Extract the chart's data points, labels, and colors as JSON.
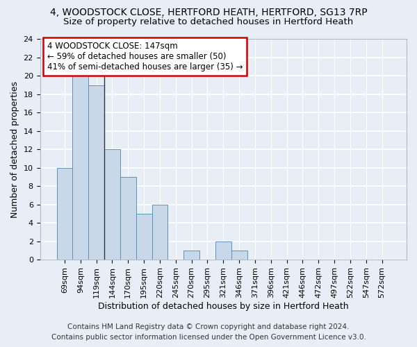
{
  "title_line1": "4, WOODSTOCK CLOSE, HERTFORD HEATH, HERTFORD, SG13 7RP",
  "title_line2": "Size of property relative to detached houses in Hertford Heath",
  "xlabel": "Distribution of detached houses by size in Hertford Heath",
  "ylabel": "Number of detached properties",
  "categories": [
    "69sqm",
    "94sqm",
    "119sqm",
    "144sqm",
    "170sqm",
    "195sqm",
    "220sqm",
    "245sqm",
    "270sqm",
    "295sqm",
    "321sqm",
    "346sqm",
    "371sqm",
    "396sqm",
    "421sqm",
    "446sqm",
    "472sqm",
    "497sqm",
    "522sqm",
    "547sqm",
    "572sqm"
  ],
  "values": [
    10,
    20,
    19,
    12,
    9,
    5,
    6,
    0,
    1,
    0,
    2,
    1,
    0,
    0,
    0,
    0,
    0,
    0,
    0,
    0,
    0
  ],
  "bar_color": "#c8d8e8",
  "bar_edge_color": "#6090b8",
  "annotation_line1": "4 WOODSTOCK CLOSE: 147sqm",
  "annotation_line2": "← 59% of detached houses are smaller (50)",
  "annotation_line3": "41% of semi-detached houses are larger (35) →",
  "annotation_box_color": "#ffffff",
  "annotation_box_edge": "#cc0000",
  "ylim": [
    0,
    24
  ],
  "yticks": [
    0,
    2,
    4,
    6,
    8,
    10,
    12,
    14,
    16,
    18,
    20,
    22,
    24
  ],
  "footer_line1": "Contains HM Land Registry data © Crown copyright and database right 2024.",
  "footer_line2": "Contains public sector information licensed under the Open Government Licence v3.0.",
  "background_color": "#e8eef5",
  "plot_bg_color": "#e8eef5",
  "grid_color": "#ffffff",
  "title_fontsize": 10,
  "subtitle_fontsize": 9.5,
  "ylabel_fontsize": 9,
  "xlabel_fontsize": 9,
  "tick_fontsize": 8,
  "annot_fontsize": 8.5,
  "footer_fontsize": 7.5,
  "vline_x": 2.5
}
